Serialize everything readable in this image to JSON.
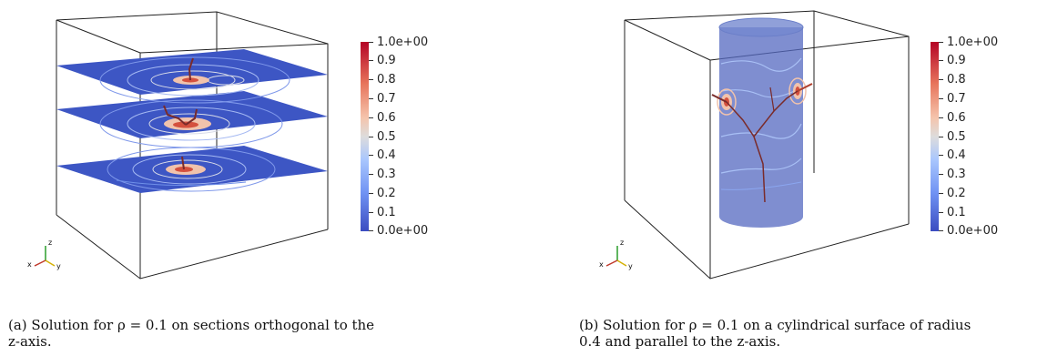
{
  "panels": [
    {
      "id": "a",
      "colorbar": {
        "labels": [
          "1.0e+00",
          "0.9",
          "0.8",
          "0.7",
          "0.6",
          "0.5",
          "0.4",
          "0.3",
          "0.2",
          "0.1",
          "0.0e+00"
        ]
      },
      "axes": {
        "z": "z",
        "x": "x",
        "y": "y"
      },
      "caption": {
        "line1": "(a) Solution for ρ = 0.1 on sections orthogonal to the",
        "line2": "z-axis."
      }
    },
    {
      "id": "b",
      "colorbar": {
        "labels": [
          "1.0e+00",
          "0.9",
          "0.8",
          "0.7",
          "0.6",
          "0.5",
          "0.4",
          "0.3",
          "0.2",
          "0.1",
          "0.0e+00"
        ]
      },
      "axes": {
        "z": "z",
        "x": "x",
        "y": "y"
      },
      "caption": {
        "line1": "(b) Solution for ρ = 0.1 on a cylindrical surface of radius",
        "line2": "0.4 and parallel to the z-axis."
      }
    }
  ],
  "colors": {
    "low": "#3b4cc0",
    "mid": "#dddcdc",
    "high": "#b40426",
    "cylinder": "#5468c0",
    "section": "#3d56c4"
  }
}
